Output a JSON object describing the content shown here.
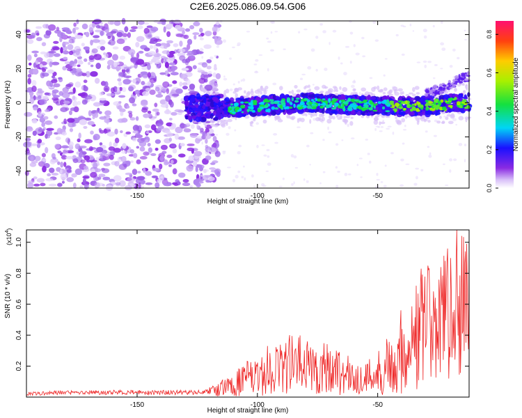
{
  "title": "C2E6.2025.086.09.54.G06",
  "chart_data": [
    {
      "type": "heatmap",
      "xlabel": "Height of straight line (km)",
      "ylabel": "Frequency (Hz)",
      "xlim": [
        -196,
        -12
      ],
      "ylim": [
        -50,
        48
      ],
      "x_ticks": [
        -150,
        -100,
        -50
      ],
      "x_tick_labels": [
        "-150",
        "-100",
        "-50"
      ],
      "y_ticks": [
        -40,
        -20,
        0,
        20,
        40
      ],
      "y_tick_labels": [
        "-40",
        "-20",
        "0",
        "20",
        "40"
      ],
      "colorbar": {
        "label": "Normalized spectral amplitude",
        "range": [
          0,
          0.87
        ],
        "ticks": [
          0,
          0.2,
          0.4,
          0.6,
          0.8
        ],
        "tick_labels": [
          "0.0",
          "0.2",
          "0.4",
          "0.6",
          "0.8"
        ],
        "colormap": "rainbow (white → violet → blue → cyan → green → yellow → red → magenta)"
      },
      "features": {
        "noise_region_x": [
          -196,
          -120
        ],
        "signal_band_x": [
          -130,
          -12
        ],
        "signal_band_center_hz": [
          [
            -130,
            -3
          ],
          [
            -110,
            -3
          ],
          [
            -80,
            0
          ],
          [
            -50,
            -2
          ],
          [
            -30,
            -2
          ],
          [
            -15,
            0
          ]
        ],
        "secondary_band_x": [
          -30,
          -12
        ],
        "secondary_band_center_hz": [
          [
            -30,
            5
          ],
          [
            -20,
            10
          ],
          [
            -15,
            15
          ]
        ]
      },
      "grid": false
    },
    {
      "type": "line",
      "xlabel": "Height of straight line (km)",
      "ylabel": "SNR (10 * v/v)",
      "y_multiplier_label": "(x10",
      "y_multiplier_exp": "4",
      "xlim": [
        -196,
        -12
      ],
      "ylim": [
        0,
        1.08
      ],
      "x_ticks": [
        -150,
        -100,
        -50
      ],
      "x_tick_labels": [
        "-150",
        "-100",
        "-50"
      ],
      "y_ticks": [
        0.2,
        0.4,
        0.6,
        0.8,
        1.0
      ],
      "y_tick_labels": [
        "0.2",
        "0.4",
        "0.6",
        "0.8",
        "1.0"
      ],
      "series": [
        {
          "color": "#ee2222",
          "x": [
            -196,
            -180,
            -160,
            -140,
            -125,
            -118,
            -110,
            -105,
            -100,
            -95,
            -90,
            -85,
            -80,
            -75,
            -70,
            -65,
            -60,
            -55,
            -50,
            -45,
            -40,
            -35,
            -30,
            -25,
            -20,
            -15,
            -12
          ],
          "y": [
            0.02,
            0.03,
            0.03,
            0.03,
            0.03,
            0.04,
            0.08,
            0.12,
            0.12,
            0.18,
            0.2,
            0.22,
            0.2,
            0.18,
            0.2,
            0.16,
            0.12,
            0.12,
            0.16,
            0.22,
            0.3,
            0.38,
            0.45,
            0.52,
            0.5,
            0.55,
            0.55
          ],
          "peaks": [
            [
              -87,
              0.36
            ],
            [
              -32,
              0.83
            ],
            [
              -22,
              0.88
            ],
            [
              -17,
              1.08
            ],
            [
              -13,
              0.99
            ],
            [
              -12,
              1.03
            ]
          ]
        }
      ],
      "grid": false
    }
  ]
}
